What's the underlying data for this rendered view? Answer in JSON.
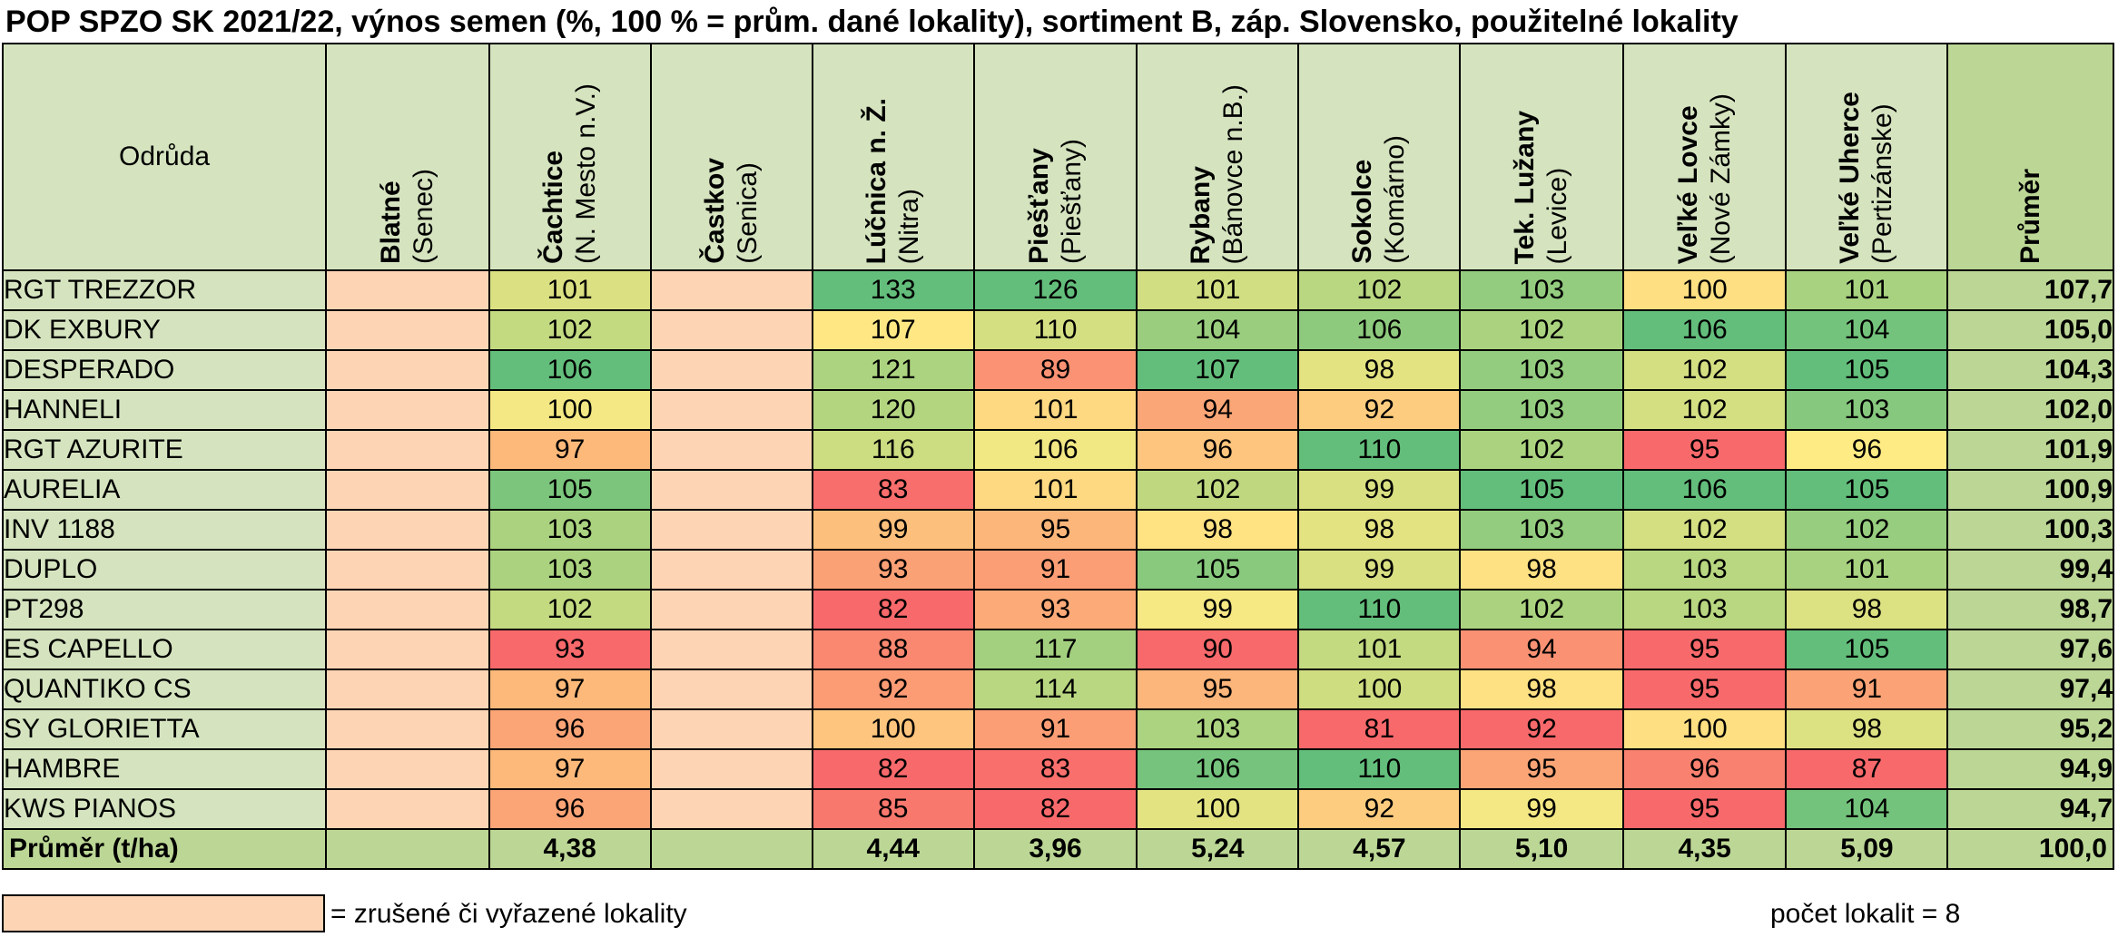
{
  "title": "POP SPZO SK 2021/22, výnos semen (%, 100 % = prům. dané lokality), sortiment B, záp. Slovensko, použitelné lokality",
  "header": {
    "variety": "Odrůda",
    "average": "Průměr",
    "locations": [
      {
        "name": "Blatné",
        "region": "(Senec)"
      },
      {
        "name": "Čachtice",
        "region": "(N. Mesto n.V.)"
      },
      {
        "name": "Častkov",
        "region": "(Senica)"
      },
      {
        "name": "Lúčnica n. Ž.",
        "region": "(Nitra)"
      },
      {
        "name": "Piešťany",
        "region": "(Piešťany)"
      },
      {
        "name": "Rybany",
        "region": "(Bánovce n.B.)"
      },
      {
        "name": "Sokolce",
        "region": "(Komárno)"
      },
      {
        "name": "Tek. Lužany",
        "region": "(Levice)"
      },
      {
        "name": "Veľké Lovce",
        "region": "(Nové Zámky)"
      },
      {
        "name": "Veľké Uherce",
        "region": "(Pertizánske)"
      }
    ]
  },
  "rows": [
    {
      "variety": "RGT TREZZOR",
      "values": [
        "",
        "101",
        "",
        "133",
        "126",
        "101",
        "102",
        "103",
        "100",
        "101"
      ],
      "avg": "107,7"
    },
    {
      "variety": "DK EXBURY",
      "values": [
        "",
        "102",
        "",
        "107",
        "110",
        "104",
        "106",
        "102",
        "106",
        "104"
      ],
      "avg": "105,0"
    },
    {
      "variety": "DESPERADO",
      "values": [
        "",
        "106",
        "",
        "121",
        "89",
        "107",
        "98",
        "103",
        "102",
        "105"
      ],
      "avg": "104,3"
    },
    {
      "variety": "HANNELI",
      "values": [
        "",
        "100",
        "",
        "120",
        "101",
        "94",
        "92",
        "103",
        "102",
        "103"
      ],
      "avg": "102,0"
    },
    {
      "variety": "RGT AZURITE",
      "values": [
        "",
        "97",
        "",
        "116",
        "106",
        "96",
        "110",
        "102",
        "95",
        "96"
      ],
      "avg": "101,9"
    },
    {
      "variety": "AURELIA",
      "values": [
        "",
        "105",
        "",
        "83",
        "101",
        "102",
        "99",
        "105",
        "106",
        "105"
      ],
      "avg": "100,9"
    },
    {
      "variety": "INV 1188",
      "values": [
        "",
        "103",
        "",
        "99",
        "95",
        "98",
        "98",
        "103",
        "102",
        "102"
      ],
      "avg": "100,3"
    },
    {
      "variety": "DUPLO",
      "values": [
        "",
        "103",
        "",
        "93",
        "91",
        "105",
        "99",
        "98",
        "103",
        "101"
      ],
      "avg": "99,4"
    },
    {
      "variety": "PT298",
      "values": [
        "",
        "102",
        "",
        "82",
        "93",
        "99",
        "110",
        "102",
        "103",
        "98"
      ],
      "avg": "98,7"
    },
    {
      "variety": "ES CAPELLO",
      "values": [
        "",
        "93",
        "",
        "88",
        "117",
        "90",
        "101",
        "94",
        "95",
        "105"
      ],
      "avg": "97,6"
    },
    {
      "variety": "QUANTIKO CS",
      "values": [
        "",
        "97",
        "",
        "92",
        "114",
        "95",
        "100",
        "98",
        "95",
        "91"
      ],
      "avg": "97,4"
    },
    {
      "variety": "SY GLORIETTA",
      "values": [
        "",
        "96",
        "",
        "100",
        "91",
        "103",
        "81",
        "92",
        "100",
        "98"
      ],
      "avg": "95,2"
    },
    {
      "variety": "HAMBRE",
      "values": [
        "",
        "97",
        "",
        "82",
        "83",
        "106",
        "110",
        "95",
        "96",
        "87"
      ],
      "avg": "94,9"
    },
    {
      "variety": "KWS PIANOS",
      "values": [
        "",
        "96",
        "",
        "85",
        "82",
        "100",
        "92",
        "99",
        "95",
        "104"
      ],
      "avg": "94,7"
    }
  ],
  "footer": {
    "label": "Průměr (t/ha)",
    "values": [
      "",
      "4,38",
      "",
      "4,44",
      "3,96",
      "5,24",
      "4,57",
      "5,10",
      "4,35",
      "5,09"
    ],
    "avg": "100,0"
  },
  "excluded_columns": [
    0,
    2
  ],
  "colors": {
    "excluded": "#fdd5b5",
    "header_bg": "#d5e4bf",
    "average_bg": "#bcd795"
  },
  "legend": {
    "text": "= zrušené či vyřazené lokality",
    "count": "počet lokalit =  8"
  }
}
